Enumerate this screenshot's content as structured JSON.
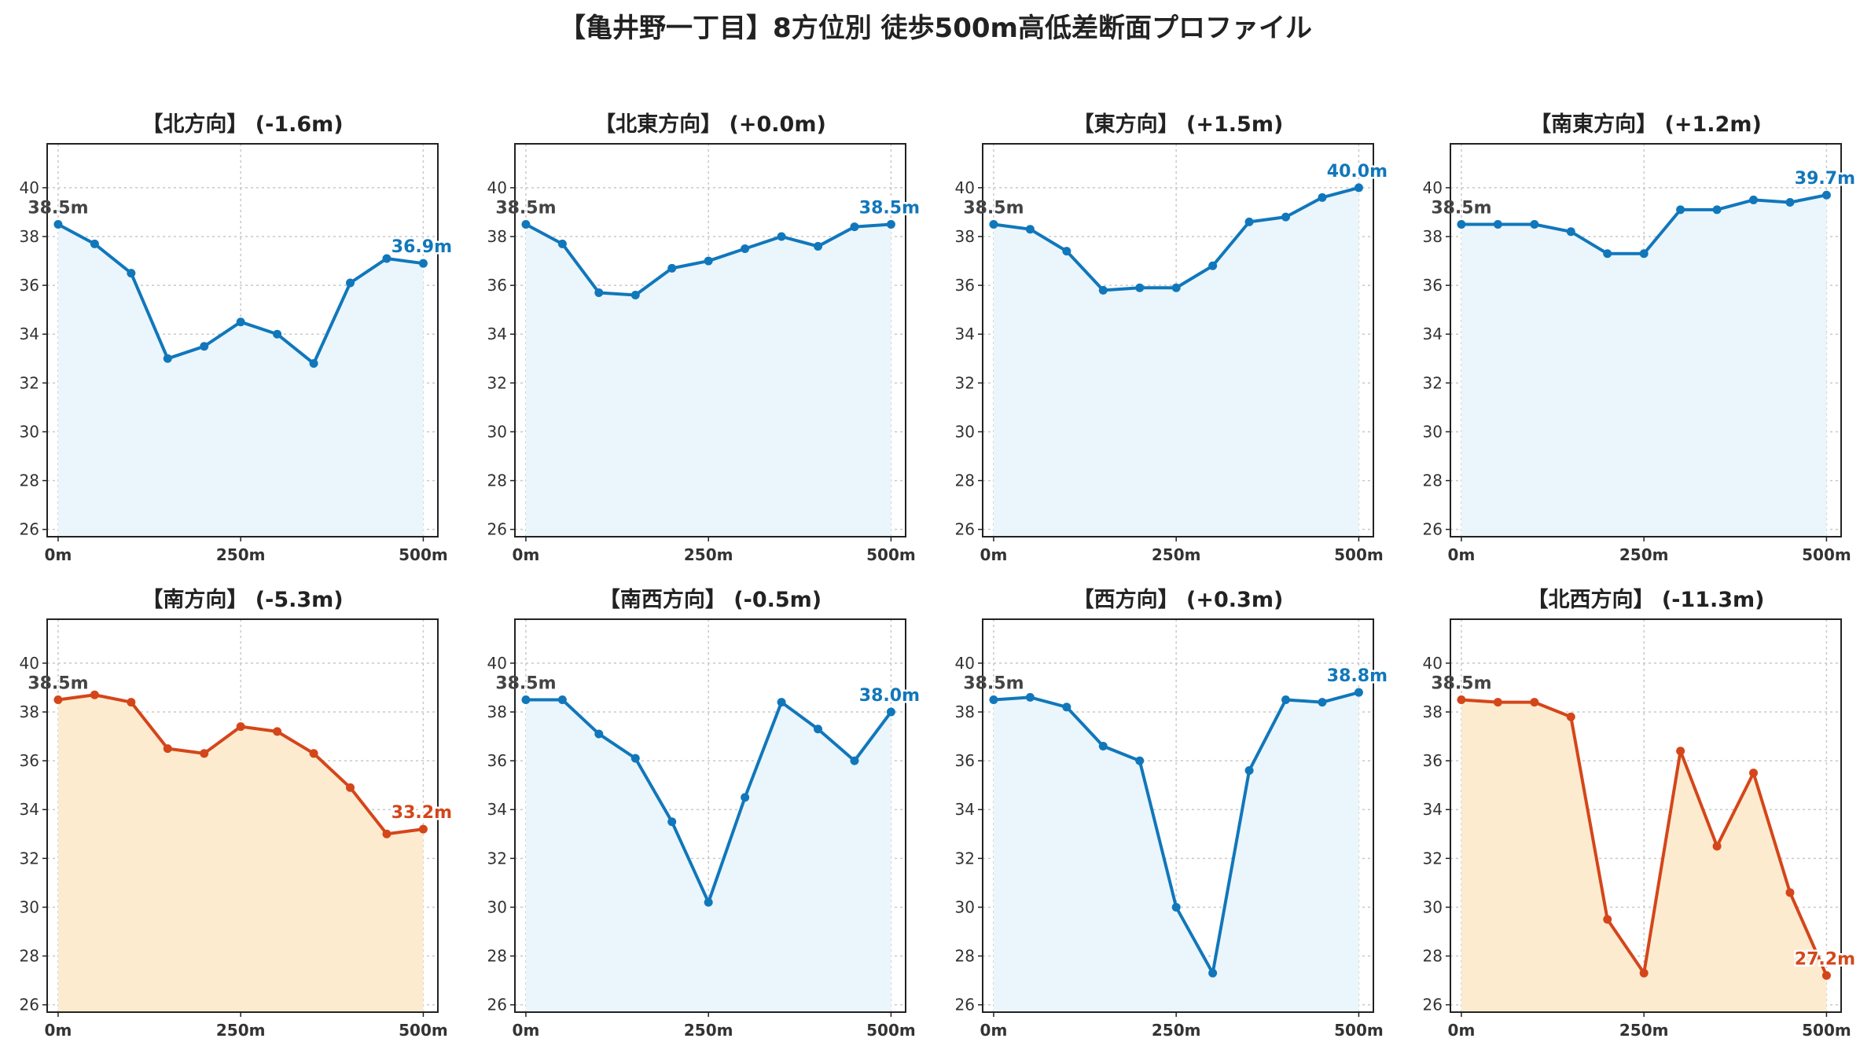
{
  "title": "【亀井野一丁目】8方位別 徒歩500m高低差断面プロファイル",
  "colors": {
    "rise_line": "#1177bb",
    "rise_fill": "#eaf6fc",
    "fall_line": "#d4461a",
    "fall_fill": "#fdebd0",
    "start_label": "#444444",
    "grid": "#c8c8c8"
  },
  "chart_data": [
    {
      "type": "area",
      "title": "【北方向】 (-1.6m)",
      "x": [
        0,
        50,
        100,
        150,
        200,
        250,
        300,
        350,
        400,
        450,
        500
      ],
      "y": [
        38.5,
        37.7,
        36.5,
        33.0,
        33.5,
        34.5,
        34.0,
        32.8,
        36.1,
        37.1,
        36.9
      ],
      "trend": "rise",
      "start_label": "38.5m",
      "end_label": "36.9m",
      "xticks": [
        "0m",
        "250m",
        "500m"
      ],
      "yticks": [
        26,
        28,
        30,
        32,
        34,
        36,
        38,
        40
      ],
      "xlim": [
        -15,
        520
      ],
      "ylim": [
        25.7,
        41.8
      ],
      "grid": true
    },
    {
      "type": "area",
      "title": "【北東方向】 (+0.0m)",
      "x": [
        0,
        50,
        100,
        150,
        200,
        250,
        300,
        350,
        400,
        450,
        500
      ],
      "y": [
        38.5,
        37.7,
        35.7,
        35.6,
        36.7,
        37.0,
        37.5,
        38.0,
        37.6,
        38.4,
        38.5
      ],
      "trend": "rise",
      "start_label": "38.5m",
      "end_label": "38.5m",
      "xticks": [
        "0m",
        "250m",
        "500m"
      ],
      "yticks": [
        26,
        28,
        30,
        32,
        34,
        36,
        38,
        40
      ],
      "xlim": [
        -15,
        520
      ],
      "ylim": [
        25.7,
        41.8
      ],
      "grid": true
    },
    {
      "type": "area",
      "title": "【東方向】 (+1.5m)",
      "x": [
        0,
        50,
        100,
        150,
        200,
        250,
        300,
        350,
        400,
        450,
        500
      ],
      "y": [
        38.5,
        38.3,
        37.4,
        35.8,
        35.9,
        35.9,
        36.8,
        38.6,
        38.8,
        39.6,
        40.0
      ],
      "trend": "rise",
      "start_label": "38.5m",
      "end_label": "40.0m",
      "xticks": [
        "0m",
        "250m",
        "500m"
      ],
      "yticks": [
        26,
        28,
        30,
        32,
        34,
        36,
        38,
        40
      ],
      "xlim": [
        -15,
        520
      ],
      "ylim": [
        25.7,
        41.8
      ],
      "grid": true
    },
    {
      "type": "area",
      "title": "【南東方向】 (+1.2m)",
      "x": [
        0,
        50,
        100,
        150,
        200,
        250,
        300,
        350,
        400,
        450,
        500
      ],
      "y": [
        38.5,
        38.5,
        38.5,
        38.2,
        37.3,
        37.3,
        39.1,
        39.1,
        39.5,
        39.4,
        39.7
      ],
      "trend": "rise",
      "start_label": "38.5m",
      "end_label": "39.7m",
      "xticks": [
        "0m",
        "250m",
        "500m"
      ],
      "yticks": [
        26,
        28,
        30,
        32,
        34,
        36,
        38,
        40
      ],
      "xlim": [
        -15,
        520
      ],
      "ylim": [
        25.7,
        41.8
      ],
      "grid": true
    },
    {
      "type": "area",
      "title": "【南方向】 (-5.3m)",
      "x": [
        0,
        50,
        100,
        150,
        200,
        250,
        300,
        350,
        400,
        450,
        500
      ],
      "y": [
        38.5,
        38.7,
        38.4,
        36.5,
        36.3,
        37.4,
        37.2,
        36.3,
        34.9,
        33.0,
        33.2
      ],
      "trend": "fall",
      "start_label": "38.5m",
      "end_label": "33.2m",
      "xticks": [
        "0m",
        "250m",
        "500m"
      ],
      "yticks": [
        26,
        28,
        30,
        32,
        34,
        36,
        38,
        40
      ],
      "xlim": [
        -15,
        520
      ],
      "ylim": [
        25.7,
        41.8
      ],
      "grid": true
    },
    {
      "type": "area",
      "title": "【南西方向】 (-0.5m)",
      "x": [
        0,
        50,
        100,
        150,
        200,
        250,
        300,
        350,
        400,
        450,
        500
      ],
      "y": [
        38.5,
        38.5,
        37.1,
        36.1,
        33.5,
        30.2,
        34.5,
        38.4,
        37.3,
        36.0,
        38.0
      ],
      "trend": "rise",
      "start_label": "38.5m",
      "end_label": "38.0m",
      "xticks": [
        "0m",
        "250m",
        "500m"
      ],
      "yticks": [
        26,
        28,
        30,
        32,
        34,
        36,
        38,
        40
      ],
      "xlim": [
        -15,
        520
      ],
      "ylim": [
        25.7,
        41.8
      ],
      "grid": true
    },
    {
      "type": "area",
      "title": "【西方向】 (+0.3m)",
      "x": [
        0,
        50,
        100,
        150,
        200,
        250,
        300,
        350,
        400,
        450,
        500
      ],
      "y": [
        38.5,
        38.6,
        38.2,
        36.6,
        36.0,
        30.0,
        27.3,
        35.6,
        38.5,
        38.4,
        38.8
      ],
      "trend": "rise",
      "start_label": "38.5m",
      "end_label": "38.8m",
      "xticks": [
        "0m",
        "250m",
        "500m"
      ],
      "yticks": [
        26,
        28,
        30,
        32,
        34,
        36,
        38,
        40
      ],
      "xlim": [
        -15,
        520
      ],
      "ylim": [
        25.7,
        41.8
      ],
      "grid": true
    },
    {
      "type": "area",
      "title": "【北西方向】 (-11.3m)",
      "x": [
        0,
        50,
        100,
        150,
        200,
        250,
        300,
        350,
        400,
        450,
        500
      ],
      "y": [
        38.5,
        38.4,
        38.4,
        37.8,
        29.5,
        27.3,
        36.4,
        32.5,
        35.5,
        30.6,
        27.2
      ],
      "trend": "fall",
      "start_label": "38.5m",
      "end_label": "27.2m",
      "xticks": [
        "0m",
        "250m",
        "500m"
      ],
      "yticks": [
        26,
        28,
        30,
        32,
        34,
        36,
        38,
        40
      ],
      "xlim": [
        -15,
        520
      ],
      "ylim": [
        25.7,
        41.8
      ],
      "grid": true
    }
  ]
}
